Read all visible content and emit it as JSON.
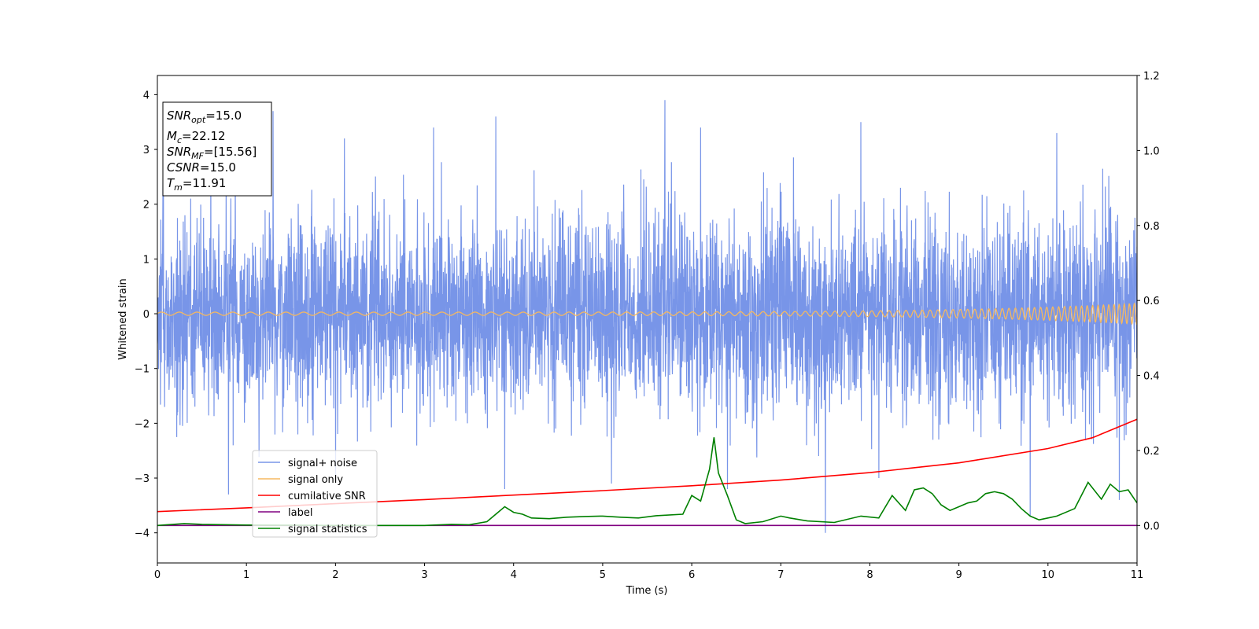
{
  "chart_data": {
    "type": "line",
    "xlabel": "Time (s)",
    "ylabel": "Whitened strain",
    "xlim": [
      0,
      11
    ],
    "ylim": [
      -4.55,
      4.35
    ],
    "y2lim": [
      -0.1,
      1.2
    ],
    "xticks": [
      0,
      1,
      2,
      3,
      4,
      5,
      6,
      7,
      8,
      9,
      10,
      11
    ],
    "yticks": [
      -4,
      -3,
      -2,
      -1,
      0,
      1,
      2,
      3,
      4
    ],
    "y2ticks": [
      "0.0",
      "0.2",
      "0.4",
      "0.6",
      "0.8",
      "1.0",
      "1.2"
    ],
    "grid": false,
    "legend_position": "lower-left",
    "info_box": {
      "snr_opt": {
        "main": "SNR",
        "sub": "opt",
        "value": "=15.0"
      },
      "mc": {
        "main": "M",
        "sub": "c",
        "value": "=22.12"
      },
      "snr_mf": {
        "main": "SNR",
        "sub": "MF",
        "value": "=[15.56]"
      },
      "csnr": {
        "main": "CSNR",
        "sub": "",
        "value": "=15.0"
      },
      "tm": {
        "main": "T",
        "sub": "m",
        "value": "=11.91"
      }
    },
    "series": [
      {
        "name": "signal+ noise",
        "color": "#7895e8",
        "axis": "left",
        "description_values": {
          "typical_range": [
            -2.2,
            2.4
          ],
          "peaks_max": [
            0.6,
            1.3,
            2.1,
            3.1,
            3.8,
            5.7,
            6.1,
            7.9,
            10.1,
            10.8
          ],
          "peaks_max_values": [
            2.6,
            3.7,
            3.2,
            3.4,
            3.6,
            3.9,
            3.4,
            3.5,
            3.3,
            3.2
          ],
          "peaks_min": [
            0.8,
            2.0,
            3.9,
            5.1,
            6.4,
            7.5,
            8.1,
            9.8,
            10.8
          ],
          "peaks_min_values": [
            -3.3,
            -3.0,
            -3.2,
            -3.1,
            -3.2,
            -4.0,
            -3.0,
            -3.7,
            -3.4
          ]
        }
      },
      {
        "name": "signal only",
        "color": "#f5b860",
        "axis": "left",
        "chirp": {
          "amp_start": 0.03,
          "amp_end": 0.19,
          "freq_start": 5,
          "freq_end": 18
        }
      },
      {
        "name": "cumilative SNR",
        "color": "#ff0000",
        "axis": "right",
        "x": [
          0,
          1,
          2,
          3,
          4,
          5,
          6,
          7,
          8,
          9,
          10,
          10.5,
          11
        ],
        "y": [
          0.037,
          0.047,
          0.058,
          0.069,
          0.081,
          0.093,
          0.106,
          0.121,
          0.141,
          0.167,
          0.205,
          0.234,
          0.283
        ]
      },
      {
        "name": "label",
        "color": "#800080",
        "axis": "right",
        "x": [
          0,
          11
        ],
        "y": [
          0.0,
          0.0
        ]
      },
      {
        "name": "signal statistics",
        "color": "#008000",
        "axis": "right",
        "x": [
          0,
          0.3,
          0.5,
          1.0,
          2.0,
          3.0,
          3.3,
          3.5,
          3.7,
          3.9,
          4.0,
          4.1,
          4.2,
          4.4,
          4.6,
          4.8,
          5.0,
          5.2,
          5.4,
          5.6,
          5.9,
          6.0,
          6.1,
          6.2,
          6.25,
          6.3,
          6.35,
          6.4,
          6.5,
          6.6,
          6.8,
          7.0,
          7.1,
          7.3,
          7.6,
          7.9,
          8.1,
          8.25,
          8.4,
          8.5,
          8.6,
          8.7,
          8.8,
          8.9,
          9.0,
          9.1,
          9.2,
          9.3,
          9.4,
          9.5,
          9.6,
          9.7,
          9.8,
          9.9,
          10.0,
          10.1,
          10.3,
          10.45,
          10.6,
          10.7,
          10.8,
          10.9,
          11.0
        ],
        "y": [
          0.0,
          0.005,
          0.003,
          0.001,
          0.0,
          0.0,
          0.003,
          0.002,
          0.01,
          0.05,
          0.035,
          0.03,
          0.02,
          0.018,
          0.022,
          0.024,
          0.025,
          0.022,
          0.02,
          0.026,
          0.03,
          0.08,
          0.065,
          0.15,
          0.235,
          0.14,
          0.11,
          0.08,
          0.015,
          0.005,
          0.01,
          0.025,
          0.02,
          0.012,
          0.008,
          0.025,
          0.02,
          0.08,
          0.04,
          0.095,
          0.1,
          0.085,
          0.055,
          0.04,
          0.05,
          0.06,
          0.065,
          0.085,
          0.09,
          0.085,
          0.07,
          0.045,
          0.025,
          0.015,
          0.02,
          0.025,
          0.045,
          0.115,
          0.07,
          0.11,
          0.09,
          0.095,
          0.06
        ]
      }
    ]
  }
}
